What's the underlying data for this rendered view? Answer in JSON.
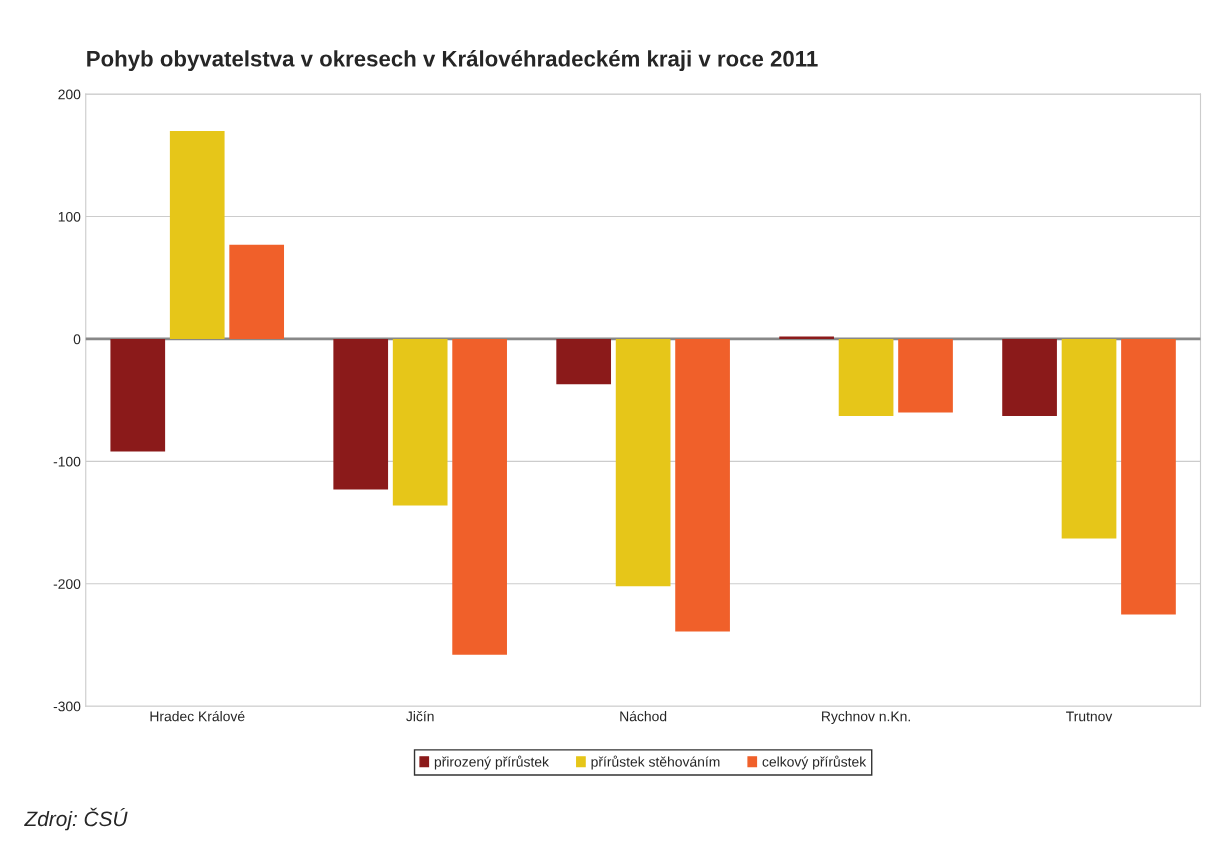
{
  "chart_data": {
    "type": "bar",
    "title": "Pohyb obyvatelstva v okresech v Královéhradeckém kraji v roce 2011",
    "categories": [
      "Hradec Králové",
      "Jičín",
      "Náchod",
      "Rychnov n.Kn.",
      "Trutnov"
    ],
    "series": [
      {
        "name": "přirozený přírůstek",
        "color": "#8b1a1a",
        "values": [
          -92,
          -123,
          -37,
          2,
          -63
        ]
      },
      {
        "name": "přírůstek stěhováním",
        "color": "#e6c619",
        "values": [
          170,
          -136,
          -202,
          -63,
          -163
        ]
      },
      {
        "name": "celkový přírůstek",
        "color": "#f0602a",
        "values": [
          77,
          -258,
          -239,
          -60,
          -225
        ]
      }
    ],
    "ylim": [
      -300,
      200
    ],
    "yticks": [
      -300,
      -200,
      -100,
      0,
      100,
      200
    ],
    "grid": "y",
    "legend": "bottom",
    "ref_lines": [
      {
        "axis": "y",
        "value": 0,
        "color": "#888888"
      }
    ],
    "annotations": [
      "Zdroj: ČSÚ"
    ]
  }
}
